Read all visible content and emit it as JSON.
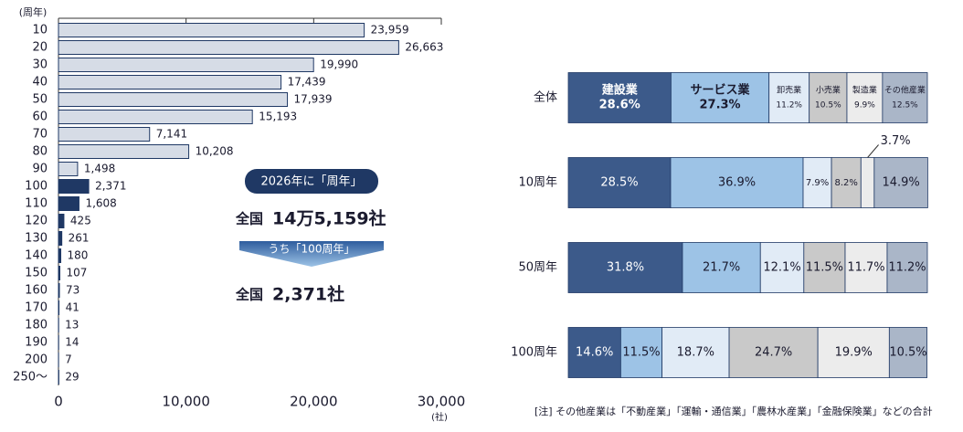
{
  "chart_data": [
    {
      "type": "hbar",
      "y_label": "(周年)",
      "x_unit": "(社)",
      "categories": [
        "10",
        "20",
        "30",
        "40",
        "50",
        "60",
        "70",
        "80",
        "90",
        "100",
        "110",
        "120",
        "130",
        "140",
        "150",
        "160",
        "170",
        "180",
        "190",
        "200",
        "250～"
      ],
      "values": [
        23959,
        26663,
        19990,
        17439,
        17939,
        15193,
        7141,
        10208,
        1498,
        2371,
        1608,
        425,
        261,
        180,
        107,
        73,
        41,
        13,
        14,
        7,
        29
      ],
      "value_labels": [
        "23,959",
        "26,663",
        "19,990",
        "17,439",
        "17,939",
        "15,193",
        "7,141",
        "10,208",
        "1,498",
        "2,371",
        "1,608",
        "425",
        "261",
        "180",
        "107",
        "73",
        "41",
        "13",
        "14",
        "7",
        "29"
      ],
      "colors": [
        "#d6dce6",
        "#d6dce6",
        "#d6dce6",
        "#d6dce6",
        "#d6dce6",
        "#d6dce6",
        "#d6dce6",
        "#d6dce6",
        "#d6dce6",
        "#1f3864",
        "#1f3864",
        "#1f3864",
        "#1f3864",
        "#1f3864",
        "#1f3864",
        "#1f3864",
        "#1f3864",
        "#1f3864",
        "#1f3864",
        "#1f3864",
        "#1f3864"
      ],
      "xlim": [
        0,
        30000
      ],
      "xticks": [
        0,
        {
          "value": 10000,
          "label": "10,000"
        },
        {
          "value": 20000,
          "label": "20,000"
        },
        {
          "value": 30000,
          "label": "30,000"
        }
      ],
      "annotations": {
        "badge": "2026年に「周年」",
        "total_label": "全国",
        "total_value": "14万5,159社",
        "arrow_label": "うち「100周年」",
        "centennial_label": "全国",
        "centennial_value": "2,371社"
      }
    },
    {
      "type": "stacked_hbar",
      "categories": [
        "全体",
        "10周年",
        "50周年",
        "100周年"
      ],
      "xlim": [
        0,
        100
      ],
      "series": [
        {
          "name": "建設業",
          "color": "#3c5a8a",
          "values": [
            28.6,
            28.5,
            31.8,
            14.6
          ],
          "value_labels": [
            "28.6%",
            "28.5%",
            "31.8%",
            "14.6%"
          ]
        },
        {
          "name": "サービス業",
          "color": "#9dc3e6",
          "values": [
            27.3,
            36.9,
            21.7,
            11.5
          ],
          "value_labels": [
            "27.3%",
            "36.9%",
            "21.7%",
            "11.5%"
          ]
        },
        {
          "name": "卸売業",
          "color": "#e1ebf6",
          "values": [
            11.2,
            7.9,
            12.1,
            18.7
          ],
          "value_labels": [
            "11.2%",
            "7.9%",
            "12.1%",
            "18.7%"
          ]
        },
        {
          "name": "小売業",
          "color": "#c9c9c9",
          "values": [
            10.5,
            8.2,
            11.5,
            24.7
          ],
          "value_labels": [
            "10.5%",
            "8.2%",
            "11.5%",
            "24.7%"
          ]
        },
        {
          "name": "製造業",
          "color": "#ececec",
          "values": [
            9.9,
            3.7,
            11.7,
            19.9
          ],
          "value_labels": [
            "9.9%",
            "3.7%",
            "11.7%",
            "19.9%"
          ]
        },
        {
          "name": "その他産業",
          "color": "#aab6c8",
          "values": [
            12.5,
            14.9,
            11.2,
            10.5
          ],
          "value_labels": [
            "12.5%",
            "14.9%",
            "11.2%",
            "10.5%"
          ]
        }
      ],
      "note": "[注] その他産業は「不動産業」「運輸・通信業」「農林水産業」「金融保険業」などの合計"
    }
  ]
}
